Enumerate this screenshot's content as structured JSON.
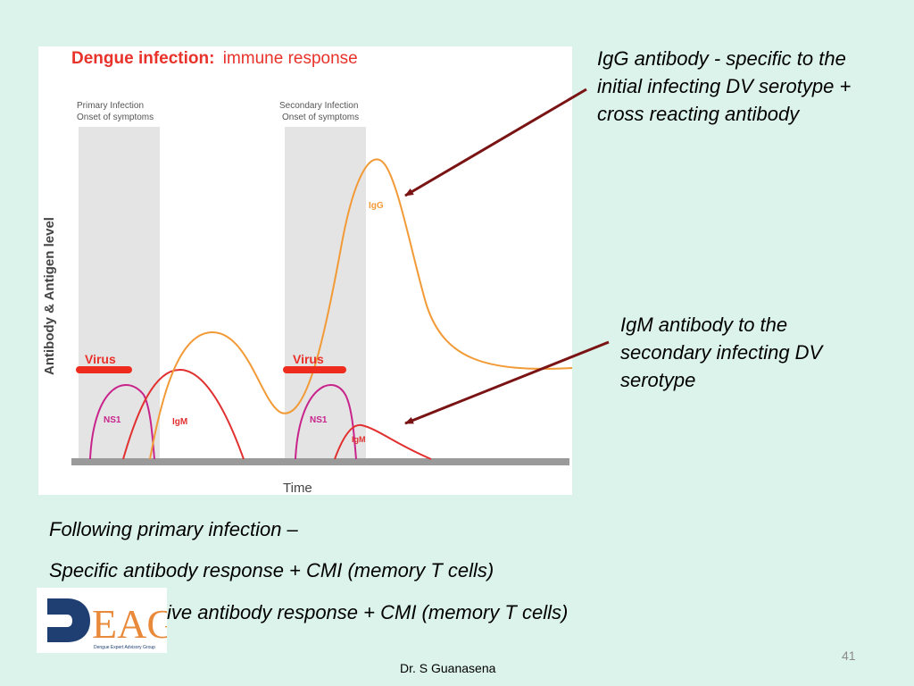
{
  "figure": {
    "title_bold": "Dengue infection:",
    "title_rest": "immune response",
    "primary_label": "Primary Infection",
    "primary_sub": "Onset of symptoms",
    "secondary_label": "Secondary Infection",
    "secondary_sub": "Onset of symptoms",
    "y_axis_label": "Antibody & Antigen level",
    "x_axis_label": "Time",
    "virus_label_1": "Virus",
    "virus_label_2": "Virus",
    "ns1_label_1": "NS1",
    "ns1_label_2": "NS1",
    "igm_label_1": "IgM",
    "igm_label_2": "IgM",
    "igg_label": "IgG",
    "colors": {
      "title_red": "#e8322a",
      "virus_red": "#ee2c1e",
      "ns1_magenta": "#c8248c",
      "igm_red": "#e23030",
      "igg_orange": "#f29a36",
      "band_gray": "#e4e4e4",
      "axis_gray": "#9a9a9a"
    }
  },
  "callouts": {
    "igg_text": "IgG antibody - specific to the initial infecting DV serotype + cross reacting antibody",
    "igm_text": "IgM antibody to the secondary infecting DV serotype",
    "arrow_color": "#7a1414"
  },
  "body": {
    "line1": "Following primary infection –",
    "line2": "Specific antibody response + CMI (memory T cells)",
    "line3": "ive antibody response + CMI (memory T cells)"
  },
  "logo": {
    "letters": "EAG",
    "caption": "Dengue Expert Advisory Group",
    "blue": "#1f3f73",
    "orange": "#e9893a"
  },
  "footer": {
    "slide_number": "41",
    "author": "Dr. S Guanasena"
  }
}
